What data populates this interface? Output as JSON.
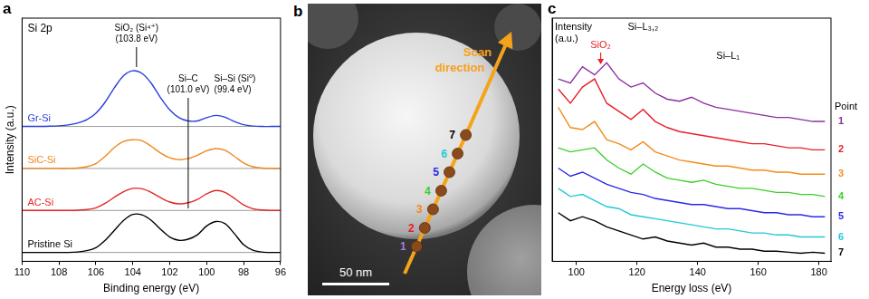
{
  "chart_data": [
    {
      "panel_label": "a",
      "type": "line",
      "title": "Si 2p",
      "x_label": "Binding energy (eV)",
      "y_label": "Intensity (a.u.)",
      "xlim": [
        110,
        96
      ],
      "xticks": [
        110,
        108,
        106,
        104,
        102,
        100,
        98,
        96
      ],
      "ylim": [
        0,
        11
      ],
      "grid": false,
      "tick_labels": "x",
      "marker": "none",
      "line_style": "solid",
      "x": [
        110,
        109.5,
        109,
        108.5,
        108,
        107.5,
        107,
        106.5,
        106,
        105.5,
        105,
        104.5,
        104,
        103.5,
        103,
        102.5,
        102,
        101.5,
        101,
        100.5,
        100,
        99.5,
        99,
        98.5,
        98,
        97.5,
        97,
        96.5,
        96
      ],
      "series": [
        {
          "name": "Gr-Si",
          "color": "#2a3fd8",
          "values": [
            6.1,
            6.1,
            6.1,
            6.11,
            6.13,
            6.17,
            6.25,
            6.4,
            6.7,
            7.2,
            7.85,
            8.4,
            8.62,
            8.5,
            8.05,
            7.4,
            6.85,
            6.5,
            6.35,
            6.35,
            6.5,
            6.6,
            6.52,
            6.32,
            6.18,
            6.12,
            6.1,
            6.1,
            6.1
          ]
        },
        {
          "name": "SiC-Si",
          "color": "#f0861e",
          "values": [
            4.2,
            4.2,
            4.2,
            4.2,
            4.2,
            4.2,
            4.22,
            4.28,
            4.42,
            4.75,
            5.15,
            5.42,
            5.5,
            5.45,
            5.2,
            4.9,
            4.68,
            4.6,
            4.65,
            4.8,
            5.0,
            5.1,
            5.02,
            4.75,
            4.45,
            4.28,
            4.22,
            4.2,
            4.2
          ]
        },
        {
          "name": "AC-Si",
          "color": "#e32626",
          "values": [
            2.3,
            2.3,
            2.3,
            2.3,
            2.3,
            2.3,
            2.31,
            2.34,
            2.42,
            2.62,
            2.9,
            3.15,
            3.3,
            3.28,
            3.12,
            2.88,
            2.68,
            2.6,
            2.65,
            2.8,
            3.05,
            3.2,
            3.12,
            2.85,
            2.55,
            2.38,
            2.32,
            2.3,
            2.3
          ]
        },
        {
          "name": "Pristine Si",
          "color": "#000000",
          "values": [
            0.4,
            0.4,
            0.4,
            0.4,
            0.4,
            0.4,
            0.42,
            0.48,
            0.62,
            0.95,
            1.4,
            1.85,
            2.12,
            2.1,
            1.85,
            1.45,
            1.1,
            0.95,
            1.0,
            1.2,
            1.6,
            1.8,
            1.7,
            1.25,
            0.75,
            0.5,
            0.42,
            0.4,
            0.4
          ]
        }
      ],
      "annotations": [
        {
          "text": [
            "SiO₂ (Si⁴⁺)",
            "(103.8 eV)"
          ],
          "x": 103.8
        },
        {
          "text": [
            "Si–C",
            "(101.0 eV)"
          ],
          "x": 101.0
        },
        {
          "text": [
            "Si–Si (Si⁰)",
            "(99.4 eV)"
          ],
          "x": 99.4
        }
      ]
    },
    {
      "panel_label": "c",
      "type": "line",
      "x_label": "Energy loss (eV)",
      "y_label": "Intensity (a.u.)",
      "xlim": [
        92,
        184
      ],
      "xticks": [
        100,
        120,
        140,
        160,
        180
      ],
      "ylim": [
        0,
        12
      ],
      "grid": false,
      "tick_labels": "x",
      "marker": "none",
      "line_style": "solid",
      "series_title": "Point",
      "x": [
        94,
        98,
        102,
        106,
        110,
        114,
        118,
        122,
        126,
        130,
        134,
        138,
        142,
        146,
        150,
        154,
        158,
        162,
        166,
        170,
        174,
        178,
        182
      ],
      "series": [
        {
          "name": "1",
          "color": "#8b2f9e",
          "values": [
            9.0,
            8.8,
            9.6,
            9.2,
            9.8,
            9.0,
            8.6,
            8.8,
            8.3,
            8.0,
            7.9,
            8.1,
            7.8,
            7.6,
            7.5,
            7.4,
            7.3,
            7.2,
            7.1,
            7.1,
            7.0,
            6.9,
            6.9
          ]
        },
        {
          "name": "2",
          "color": "#e8202a",
          "values": [
            8.5,
            7.8,
            8.6,
            9.0,
            7.8,
            7.4,
            7.0,
            7.5,
            6.9,
            6.6,
            6.4,
            6.3,
            6.2,
            6.1,
            6.0,
            5.9,
            5.8,
            5.8,
            5.7,
            5.6,
            5.6,
            5.5,
            5.5
          ]
        },
        {
          "name": "3",
          "color": "#f28c1b",
          "values": [
            7.6,
            6.6,
            6.5,
            6.9,
            6.0,
            5.8,
            5.5,
            5.9,
            5.4,
            5.2,
            5.0,
            4.9,
            4.8,
            4.7,
            4.7,
            4.6,
            4.5,
            4.5,
            4.4,
            4.4,
            4.3,
            4.3,
            4.3
          ]
        },
        {
          "name": "4",
          "color": "#3ccf2a",
          "values": [
            5.6,
            5.4,
            5.5,
            5.6,
            5.0,
            4.6,
            4.3,
            4.8,
            4.4,
            4.1,
            4.0,
            3.9,
            4.0,
            3.8,
            3.7,
            3.6,
            3.6,
            3.5,
            3.4,
            3.4,
            3.3,
            3.3,
            3.2
          ]
        },
        {
          "name": "5",
          "color": "#2a2ae8",
          "values": [
            4.6,
            4.2,
            4.4,
            4.1,
            3.8,
            3.6,
            3.4,
            3.3,
            3.1,
            3.0,
            2.9,
            2.8,
            2.8,
            2.7,
            2.6,
            2.6,
            2.5,
            2.4,
            2.4,
            2.3,
            2.3,
            2.2,
            2.2
          ]
        },
        {
          "name": "6",
          "color": "#22c8d8",
          "values": [
            3.6,
            3.2,
            3.3,
            3.0,
            2.7,
            2.6,
            2.3,
            2.2,
            2.1,
            2.0,
            1.9,
            1.8,
            1.7,
            1.6,
            1.6,
            1.5,
            1.4,
            1.4,
            1.3,
            1.3,
            1.2,
            1.2,
            1.2
          ]
        },
        {
          "name": "7",
          "color": "#000000",
          "values": [
            2.4,
            2.0,
            2.2,
            2.0,
            1.7,
            1.5,
            1.3,
            1.1,
            1.2,
            1.0,
            0.9,
            0.8,
            0.9,
            0.7,
            0.7,
            0.6,
            0.6,
            0.5,
            0.5,
            0.45,
            0.4,
            0.45,
            0.4
          ]
        }
      ],
      "annotations": [
        {
          "text": "SiO₂",
          "x": 108,
          "color": "#e8202a"
        },
        {
          "text": "Si–L₃,₂",
          "x": 122,
          "color": "#000000"
        },
        {
          "text": "Si–L₁",
          "x": 150,
          "color": "#000000"
        }
      ]
    }
  ],
  "image_panel": {
    "panel_label": "b",
    "annotation": "Scan direction",
    "scale_bar": "50 nm",
    "points": [
      {
        "label": "1",
        "color": "#a07fd0"
      },
      {
        "label": "2",
        "color": "#e8202a"
      },
      {
        "label": "3",
        "color": "#f28c1b"
      },
      {
        "label": "4",
        "color": "#3ccf2a"
      },
      {
        "label": "5",
        "color": "#2a2ae8"
      },
      {
        "label": "6",
        "color": "#22c8d8"
      },
      {
        "label": "7",
        "color": "#000000"
      }
    ]
  }
}
